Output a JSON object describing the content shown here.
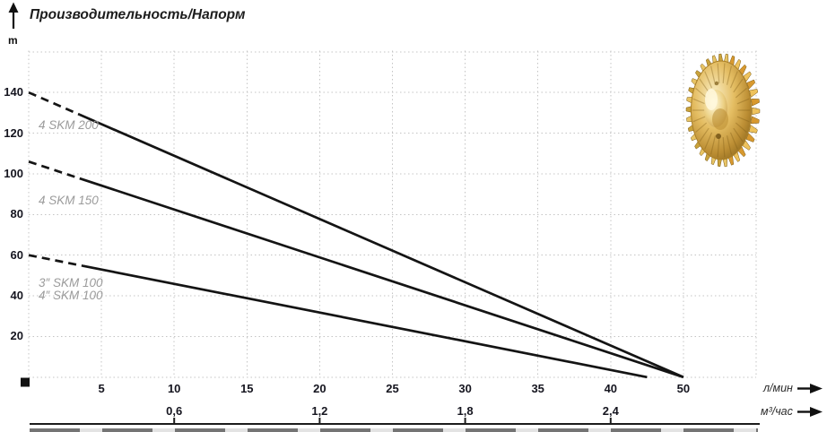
{
  "title": "Производительность/Напорм",
  "y_axis": {
    "unit_label": "m",
    "tick_labels": [
      "140",
      "120",
      "100",
      "80",
      "60",
      "40",
      "20"
    ]
  },
  "x_axis_primary": {
    "unit_label": "л/мин",
    "tick_labels": [
      "5",
      "10",
      "15",
      "20",
      "25",
      "30",
      "35",
      "40",
      "50"
    ]
  },
  "x_axis_secondary": {
    "unit_label": "м³/час",
    "tick_labels": [
      "0,6",
      "1,2",
      "1,8",
      "2,4"
    ]
  },
  "curve_labels": {
    "c1": "4 SKM 200",
    "c2": "4 SKM 150",
    "c3": "3″ SKM 100",
    "c4": "4″ SKM 100"
  },
  "chart_data": {
    "type": "line",
    "title": "Производительность/Напорм",
    "ylabel": "m",
    "xlabel_primary": "л/мин",
    "xlabel_secondary": "м³/час",
    "x_ticks_l_min": [
      5,
      10,
      15,
      20,
      25,
      30,
      35,
      40,
      50
    ],
    "x_ticks_m3_hour": [
      0.6,
      1.2,
      1.8,
      2.4
    ],
    "ylim": [
      0,
      160
    ],
    "grid": true,
    "legend_position": "labels-on-chart",
    "series": [
      {
        "name": "4 SKM 200",
        "points_l_min_vs_m": [
          [
            0,
            140
          ],
          [
            50,
            0
          ]
        ],
        "dashed_until_l_min": 3.5,
        "color": "#141414"
      },
      {
        "name": "4 SKM 150",
        "points_l_min_vs_m": [
          [
            0,
            106
          ],
          [
            50,
            0
          ]
        ],
        "dashed_until_l_min": 3.5,
        "color": "#141414"
      },
      {
        "name": "3″ SKM 100 / 4″ SKM 100",
        "points_l_min_vs_m": [
          [
            0,
            60
          ],
          [
            45,
            0
          ]
        ],
        "dashed_until_l_min": 3.7,
        "color": "#141414"
      }
    ]
  },
  "colors": {
    "curve": "#141414",
    "grid": "#c4c4c4",
    "tick_text": "#15151f",
    "curve_label_text": "#9b9b9b",
    "impeller_gold": "#dcae4a"
  },
  "icons": {
    "up_arrow": "axis-arrow-up",
    "right_arrow": "axis-arrow-right",
    "origin_square": "origin-marker",
    "impeller": "brass-impeller-photo"
  }
}
